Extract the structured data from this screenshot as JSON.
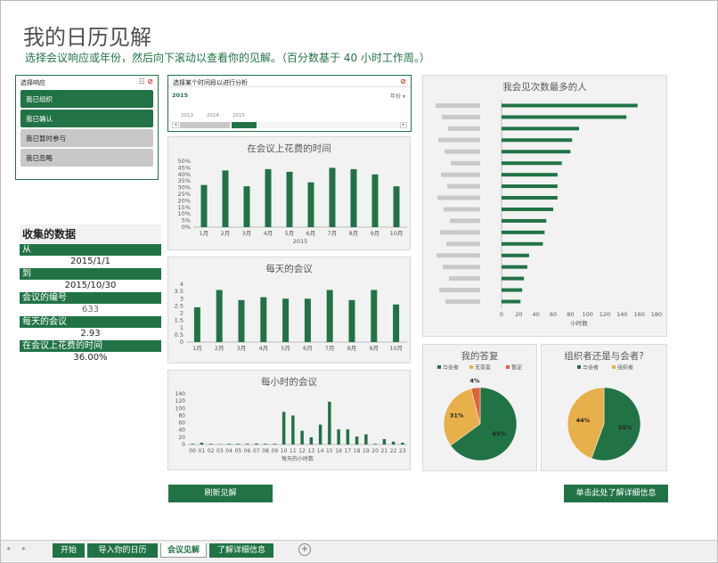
{
  "page": {
    "title": "我的日历见解",
    "subtitle": "选择会议响应或年份，然后向下滚动以查看你的见解。（百分数基于 40 小时工作周。）"
  },
  "response_slicer": {
    "title": "选择响应",
    "items": [
      {
        "label": "我已组织",
        "selected": true
      },
      {
        "label": "我已确认",
        "selected": true
      },
      {
        "label": "我已暂时参与",
        "selected": false
      },
      {
        "label": "我已忽略",
        "selected": false
      }
    ]
  },
  "timeline": {
    "title": "选择某个时间段以进行分析",
    "selected_label": "2015",
    "level_label": "年份",
    "years": [
      "2013",
      "2014",
      "2015"
    ]
  },
  "collected": {
    "title": "收集的数据",
    "from_label": "从",
    "from_value": "2015/1/1",
    "to_label": "到",
    "to_value": "2015/10/30",
    "count_label": "会议的编号",
    "count_value": "633",
    "daily_label": "每天的会议",
    "daily_value": "2.93",
    "time_label": "在会议上花费的时间",
    "time_value": "36.00%"
  },
  "buttons": {
    "refresh": "刷新见解",
    "details": "单击此处了解详细信息"
  },
  "tabs": [
    "开始",
    "导入你的日历",
    "会议见解",
    "了解详细信息"
  ],
  "colors": {
    "accent": "#217346",
    "orange": "#e8b04b",
    "red": "#e0623a"
  },
  "chart_data": [
    {
      "type": "bar",
      "title": "在会议上花费的时间",
      "categories": [
        "1月",
        "2月",
        "3月",
        "4月",
        "5月",
        "6月",
        "7月",
        "8月",
        "9月",
        "10月"
      ],
      "values": [
        32,
        43,
        31,
        44,
        42,
        34,
        45,
        44,
        40,
        31
      ],
      "yticks": [
        "0%",
        "5%",
        "10%",
        "15%",
        "20%",
        "25%",
        "30%",
        "35%",
        "40%",
        "45%",
        "50%"
      ],
      "ylim": [
        0,
        50
      ],
      "xlabel": "2015"
    },
    {
      "type": "bar",
      "title": "每天的会议",
      "categories": [
        "1月",
        "2月",
        "3月",
        "4月",
        "5月",
        "6月",
        "7月",
        "8月",
        "9月",
        "10月"
      ],
      "values": [
        2.4,
        3.6,
        2.9,
        3.1,
        3.0,
        3.0,
        3.6,
        2.9,
        3.6,
        2.6
      ],
      "yticks": [
        "0",
        "0.5",
        "1",
        "1.5",
        "2",
        "2.5",
        "3",
        "3.5",
        "4"
      ],
      "ylim": [
        0,
        4
      ]
    },
    {
      "type": "bar",
      "title": "每小时的会议",
      "categories": [
        "00",
        "01",
        "02",
        "03",
        "04",
        "05",
        "06",
        "07",
        "08",
        "09",
        "10",
        "11",
        "12",
        "13",
        "14",
        "15",
        "16",
        "17",
        "18",
        "19",
        "20",
        "21",
        "22",
        "23"
      ],
      "values": [
        2,
        5,
        2,
        1,
        2,
        2,
        2,
        3,
        2,
        2,
        90,
        80,
        38,
        20,
        55,
        118,
        42,
        42,
        22,
        28,
        2,
        15,
        8,
        5
      ],
      "yticks": [
        "0",
        "20",
        "40",
        "60",
        "80",
        "100",
        "120",
        "140"
      ],
      "ylim": [
        0,
        140
      ],
      "xlabel": "每天的小时数"
    },
    {
      "type": "bar",
      "orientation": "horizontal",
      "title": "我会见次数最多的人",
      "values": [
        158,
        145,
        90,
        82,
        80,
        70,
        65,
        65,
        65,
        60,
        52,
        50,
        48,
        32,
        30,
        26,
        24,
        22
      ],
      "xticks": [
        "0",
        "20",
        "40",
        "60",
        "80",
        "100",
        "120",
        "140",
        "160",
        "180"
      ],
      "xlim": [
        0,
        180
      ],
      "xlabel": "小时数"
    },
    {
      "type": "pie",
      "title": "我的答复",
      "legend": [
        "与会者",
        "无答复",
        "暂定"
      ],
      "values": [
        65,
        31,
        4
      ],
      "labels": [
        "65%",
        "31%",
        "4%"
      ]
    },
    {
      "type": "pie",
      "title": "组织者还是与会者?",
      "legend": [
        "与会者",
        "组织者"
      ],
      "values": [
        55,
        44
      ],
      "labels": [
        "55%",
        "44%"
      ]
    }
  ]
}
